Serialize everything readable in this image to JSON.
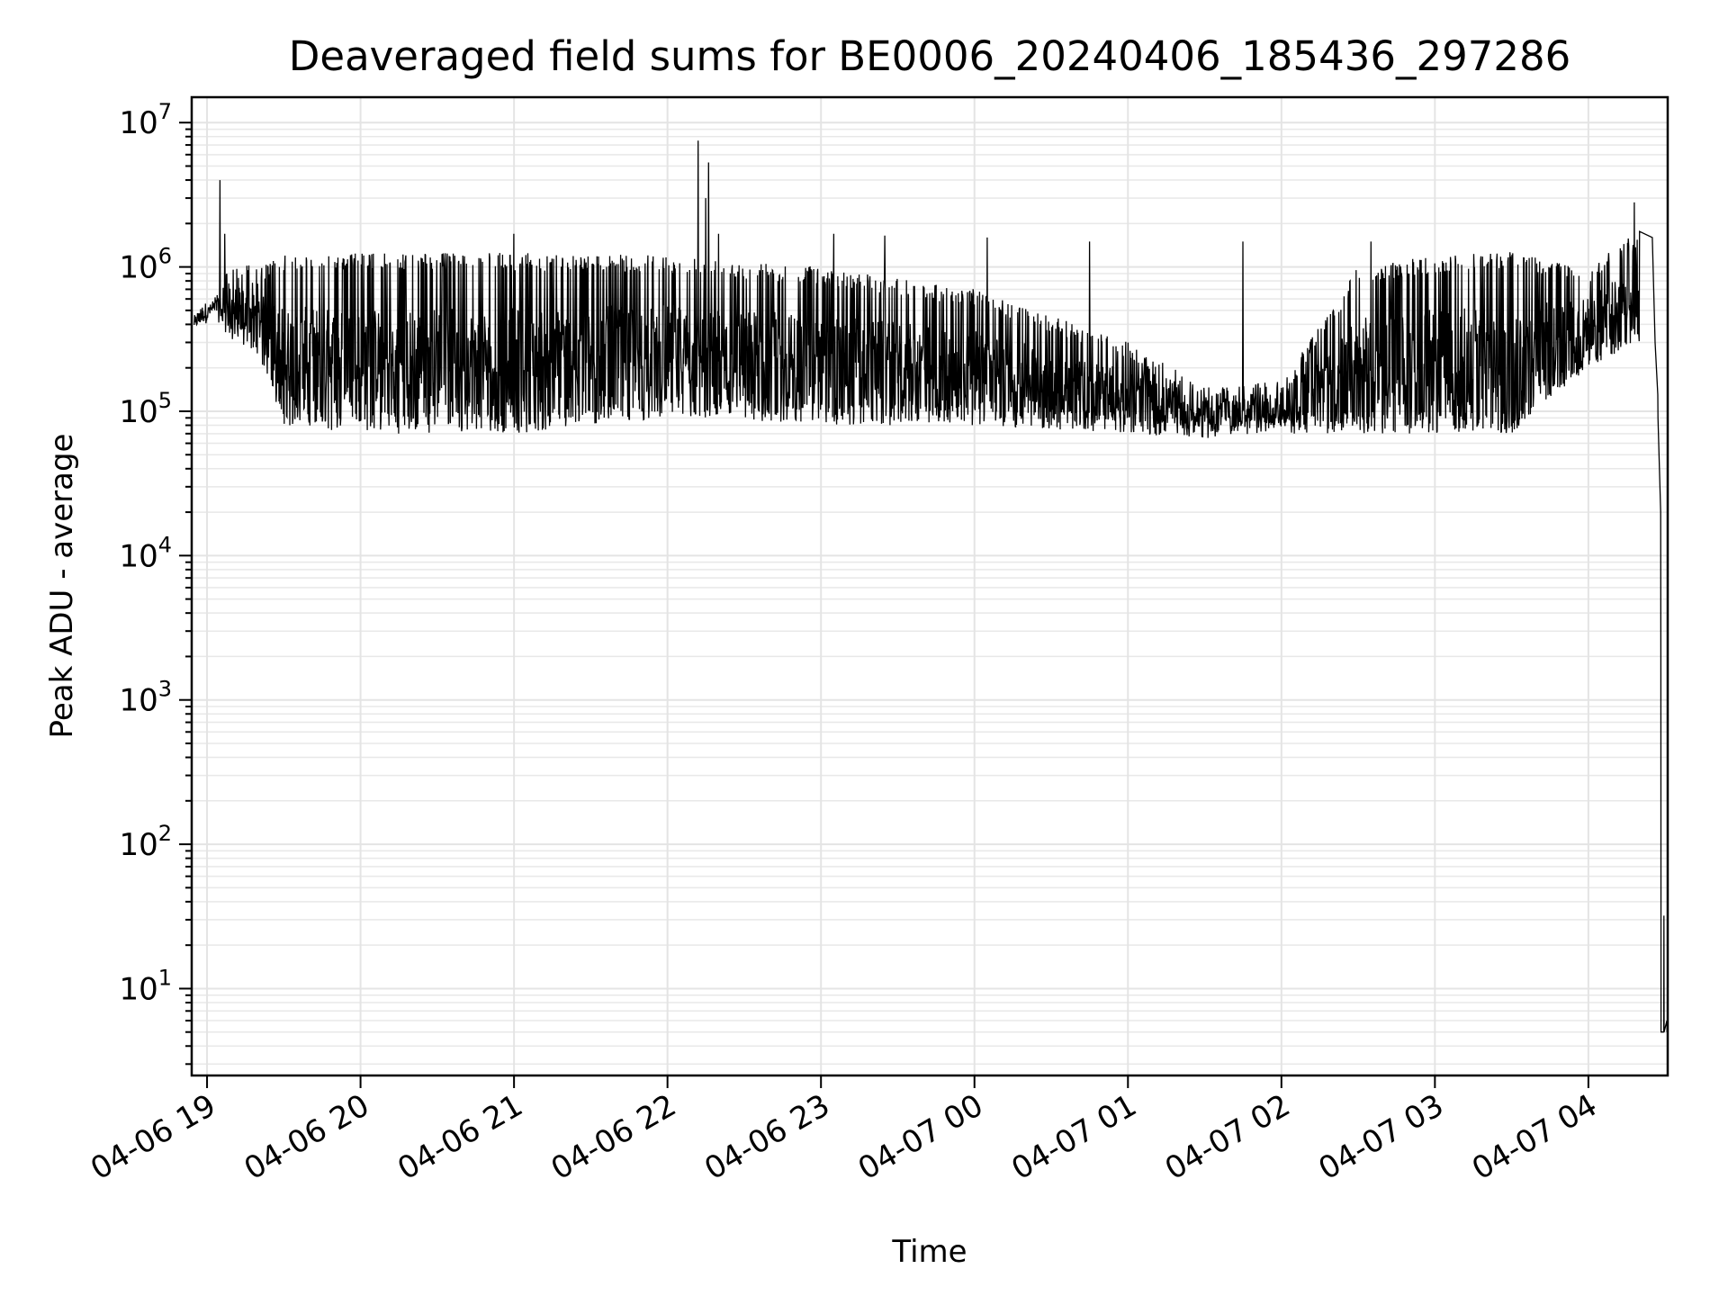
{
  "chart_data": {
    "type": "line",
    "title": "Deaveraged field sums for BE0006_20240406_185436_297286",
    "xlabel": "Time",
    "ylabel": "Peak ADU - average",
    "yscale": "log",
    "ylim": [
      2.5,
      15000000
    ],
    "xlim": [
      "2024-04-06 18:54",
      "2024-04-07 04:31"
    ],
    "grid": true,
    "line_color": "#000000",
    "x_tick_labels": [
      "04-06 19",
      "04-06 20",
      "04-06 21",
      "04-06 22",
      "04-06 23",
      "04-07 00",
      "04-07 01",
      "04-07 02",
      "04-07 03",
      "04-07 04"
    ],
    "y_tick_labels": [
      {
        "base": "10",
        "exp": "1"
      },
      {
        "base": "10",
        "exp": "2"
      },
      {
        "base": "10",
        "exp": "3"
      },
      {
        "base": "10",
        "exp": "4"
      },
      {
        "base": "10",
        "exp": "5"
      },
      {
        "base": "10",
        "exp": "6"
      },
      {
        "base": "10",
        "exp": "7"
      }
    ],
    "series": [
      {
        "envelope": [
          {
            "x": "2024-04-06 18:55",
            "low": 350000,
            "high": 520000
          },
          {
            "x": "2024-04-06 19:03",
            "low": 450000,
            "high": 650000
          },
          {
            "x": "2024-04-06 19:10",
            "low": 300000,
            "high": 1100000
          },
          {
            "x": "2024-04-06 19:20",
            "low": 250000,
            "high": 1000000
          },
          {
            "x": "2024-04-06 19:30",
            "low": 80000,
            "high": 1200000
          },
          {
            "x": "2024-04-06 20:00",
            "low": 70000,
            "high": 1250000
          },
          {
            "x": "2024-04-06 21:00",
            "low": 70000,
            "high": 1250000
          },
          {
            "x": "2024-04-06 22:00",
            "low": 90000,
            "high": 1200000
          },
          {
            "x": "2024-04-06 23:00",
            "low": 80000,
            "high": 1000000
          },
          {
            "x": "2024-04-07 00:00",
            "low": 80000,
            "high": 700000
          },
          {
            "x": "2024-04-07 01:00",
            "low": 70000,
            "high": 300000
          },
          {
            "x": "2024-04-07 01:30",
            "low": 65000,
            "high": 150000
          },
          {
            "x": "2024-04-07 02:00",
            "low": 70000,
            "high": 160000
          },
          {
            "x": "2024-04-07 02:30",
            "low": 70000,
            "high": 1000000
          },
          {
            "x": "2024-04-07 03:00",
            "low": 70000,
            "high": 1200000
          },
          {
            "x": "2024-04-07 03:30",
            "low": 70000,
            "high": 1300000
          },
          {
            "x": "2024-04-07 04:00",
            "low": 200000,
            "high": 1000000
          },
          {
            "x": "2024-04-07 04:20",
            "low": 300000,
            "high": 1800000
          }
        ],
        "spikes": [
          {
            "x": "2024-04-06 19:05",
            "y": 4000000
          },
          {
            "x": "2024-04-06 19:07",
            "y": 1700000
          },
          {
            "x": "2024-04-06 21:00",
            "y": 1700000
          },
          {
            "x": "2024-04-06 22:12",
            "y": 7500000
          },
          {
            "x": "2024-04-06 22:15",
            "y": 3000000
          },
          {
            "x": "2024-04-06 22:16",
            "y": 5300000
          },
          {
            "x": "2024-04-06 22:20",
            "y": 1700000
          },
          {
            "x": "2024-04-06 23:05",
            "y": 1700000
          },
          {
            "x": "2024-04-06 23:25",
            "y": 1650000
          },
          {
            "x": "2024-04-07 00:05",
            "y": 1600000
          },
          {
            "x": "2024-04-07 00:45",
            "y": 1500000
          },
          {
            "x": "2024-04-07 01:45",
            "y": 1500000
          },
          {
            "x": "2024-04-07 02:35",
            "y": 1500000
          },
          {
            "x": "2024-04-07 04:18",
            "y": 2800000
          }
        ],
        "drop": [
          {
            "x": "2024-04-07 04:25",
            "y": 1600000
          },
          {
            "x": "2024-04-07 04:26",
            "y": 300000
          },
          {
            "x": "2024-04-07 04:27",
            "y": 130000
          },
          {
            "x": "2024-04-07 04:27",
            "y": 90000
          },
          {
            "x": "2024-04-07 04:28",
            "y": 20000
          },
          {
            "x": "2024-04-07 04:28",
            "y": 2000
          },
          {
            "x": "2024-04-07 04:28",
            "y": 5
          },
          {
            "x": "2024-04-07 04:29",
            "y": 5
          },
          {
            "x": "2024-04-07 04:29",
            "y": 32
          },
          {
            "x": "2024-04-07 04:29",
            "y": 5
          },
          {
            "x": "2024-04-07 04:30",
            "y": 6
          },
          {
            "x": "2024-04-07 04:30",
            "y": 5
          }
        ]
      }
    ]
  }
}
